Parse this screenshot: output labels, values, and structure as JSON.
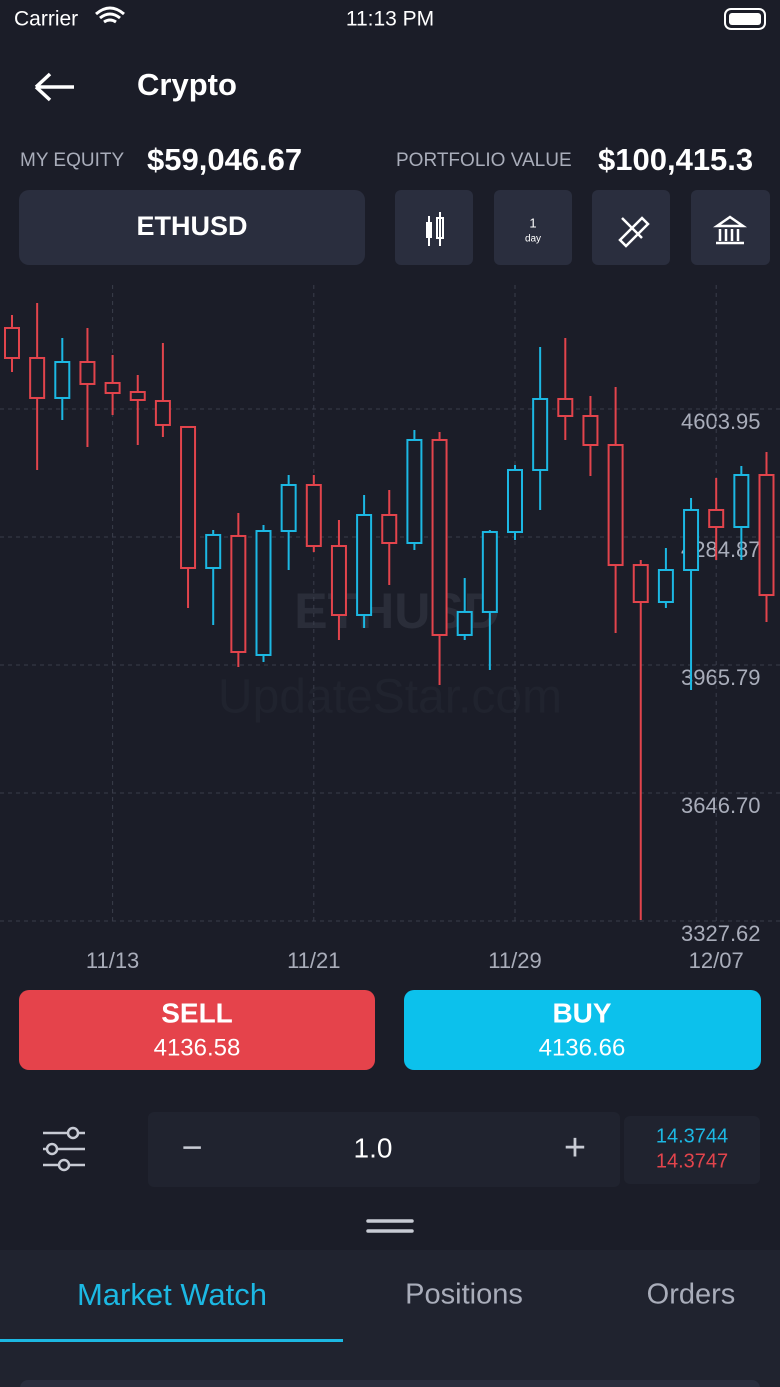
{
  "status_bar": {
    "carrier": "Carrier",
    "time": "11:13 PM"
  },
  "header": {
    "title": "Crypto"
  },
  "account": {
    "equity_label": "MY EQUITY",
    "equity_value": "$59,046.67",
    "portfolio_label": "PORTFOLIO VALUE",
    "portfolio_value": "$100,415.3"
  },
  "toolbar": {
    "symbol": "ETHUSD",
    "interval_count": "1",
    "interval_unit": "day"
  },
  "chart_data": {
    "type": "candlestick",
    "watermark": "ETHUSD",
    "watermark_source": "UpdateStar.com",
    "x": [
      "11/09",
      "11/10",
      "11/11",
      "11/12",
      "11/13",
      "11/14",
      "11/15",
      "11/16",
      "11/17",
      "11/18",
      "11/19",
      "11/20",
      "11/21",
      "11/22",
      "11/23",
      "11/24",
      "11/25",
      "11/26",
      "11/27",
      "11/28",
      "11/29",
      "11/30",
      "12/01",
      "12/02",
      "12/03",
      "12/04",
      "12/05",
      "12/06",
      "12/07",
      "12/08",
      "12/09"
    ],
    "open": [
      4805.9,
      4731.1,
      4631.4,
      4721.1,
      4668.8,
      4646.3,
      4623.9,
      4559.1,
      4207.6,
      4287.4,
      3990.7,
      4299.8,
      4414.5,
      4262.4,
      4090.4,
      4339.7,
      4269.9,
      4526.7,
      4040.6,
      4098.0,
      4297.3,
      4451.9,
      4628.9,
      4586.5,
      4514.2,
      4215.0,
      4122.8,
      4202.6,
      4352.2,
      4309.8,
      4439.4
    ],
    "high": [
      4838.3,
      4868.2,
      4781.0,
      4805.9,
      4738.6,
      4688.7,
      4768.5,
      4559.1,
      4302.3,
      4344.7,
      4314.8,
      4439.4,
      4439.4,
      4327.2,
      4389.6,
      4402.0,
      4551.6,
      4546.6,
      4182.6,
      4302.3,
      4464.3,
      4758.5,
      4781.0,
      4636.4,
      4658.8,
      4227.5,
      4257.4,
      4382.1,
      4431.9,
      4461.8,
      4496.7
    ],
    "low": [
      4696.2,
      4451.9,
      4576.5,
      4509.2,
      4589.0,
      4514.2,
      4534.2,
      4107.9,
      4065.5,
      3960.8,
      3973.3,
      4202.6,
      4247.5,
      4028.1,
      4058.0,
      4165.2,
      4252.4,
      3915.9,
      4028.1,
      3953.3,
      4277.4,
      4352.2,
      4526.7,
      4436.9,
      4045.6,
      3330.1,
      4107.9,
      3903.4,
      4227.5,
      4227.5,
      4072.9
    ],
    "close": [
      4731.1,
      4631.4,
      4721.1,
      4666.3,
      4643.8,
      4626.4,
      4564.1,
      4207.6,
      4289.9,
      3998.2,
      4299.8,
      4414.5,
      4262.4,
      4090.4,
      4339.7,
      4269.9,
      4526.7,
      4040.6,
      4098.0,
      4297.3,
      4451.9,
      4628.9,
      4586.5,
      4514.2,
      4215.0,
      4122.8,
      4202.6,
      4352.2,
      4309.8,
      4439.4,
      4140.2
    ],
    "up_color": "#1cb8e3",
    "down_color": "#e2444c",
    "ylim": [
      3327.62,
      4913.05
    ],
    "yticks": [
      3327.62,
      {
        "value": 3646.7,
        "label": "3646.70"
      },
      3965.79,
      4284.87,
      4603.95
    ],
    "xticks": [
      "11/13",
      "11/21",
      "11/29",
      "12/07"
    ],
    "grid": true
  },
  "trade": {
    "sell_label": "SELL",
    "sell_price": "4136.58",
    "buy_label": "BUY",
    "buy_price": "4136.66",
    "minus": "−",
    "quantity": "1.0",
    "plus": "+",
    "spread_bid": "14.3744",
    "spread_ask": "14.3747"
  },
  "tabs": [
    "Market Watch",
    "Positions",
    "Orders"
  ]
}
